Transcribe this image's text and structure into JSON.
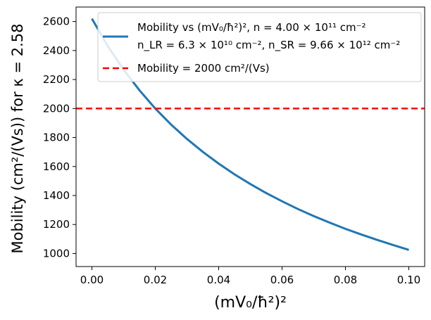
{
  "chart_data": {
    "type": "line",
    "title": "",
    "xlabel": "(mV₀/ħ²)²",
    "ylabel": "Mobility (cm²/(Vs)) for  κ = 2.58",
    "xlim": [
      -0.005,
      0.105
    ],
    "ylim": [
      910,
      2700
    ],
    "x_ticks": [
      0.0,
      0.02,
      0.04,
      0.06,
      0.08,
      0.1
    ],
    "x_tick_labels": [
      "0.00",
      "0.02",
      "0.04",
      "0.06",
      "0.08",
      "0.10"
    ],
    "y_ticks": [
      1000,
      1200,
      1400,
      1600,
      1800,
      2000,
      2200,
      2400,
      2600
    ],
    "y_tick_labels": [
      "1000",
      "1200",
      "1400",
      "1600",
      "1800",
      "2000",
      "2200",
      "2400",
      "2600"
    ],
    "grid": false,
    "legend_position": "top-right",
    "series": [
      {
        "name": "Mobility vs (mV₀/ħ²)², n = 4.00 × 10¹¹ cm⁻²",
        "name_line2": "n_LR = 6.3 × 10¹⁰ cm⁻², n_SR = 9.66 × 10¹² cm⁻²",
        "color": "#1f77b4",
        "style": "solid",
        "x": [
          0.0,
          0.005,
          0.01,
          0.015,
          0.02,
          0.025,
          0.03,
          0.035,
          0.04,
          0.045,
          0.05,
          0.055,
          0.06,
          0.065,
          0.07,
          0.075,
          0.08,
          0.085,
          0.09,
          0.095,
          0.1
        ],
        "values": [
          2620,
          2431,
          2268,
          2126,
          2000,
          1889,
          1790,
          1701,
          1620,
          1546,
          1479,
          1417,
          1360,
          1307,
          1258,
          1213,
          1170,
          1131,
          1094,
          1059,
          1025
        ]
      },
      {
        "name": "Mobility = 2000 cm²/(Vs)",
        "color": "#ff0000",
        "style": "dashed",
        "x": [
          -0.005,
          0.105
        ],
        "values": [
          2000,
          2000
        ]
      }
    ]
  }
}
